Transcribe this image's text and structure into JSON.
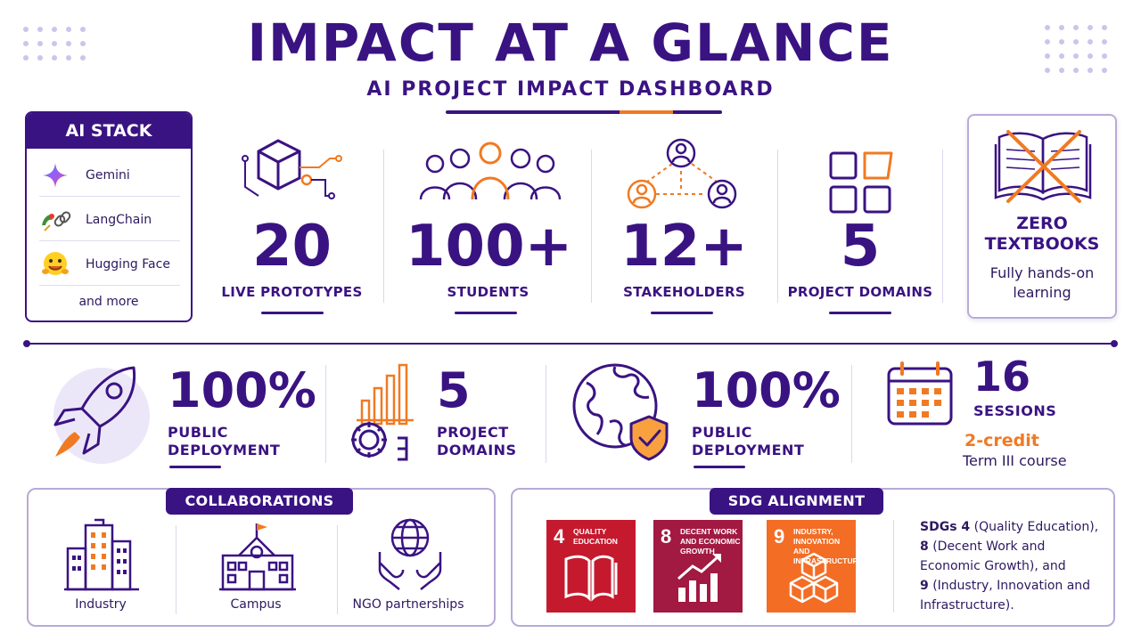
{
  "header": {
    "title": "IMPACT AT A GLANCE",
    "subtitle": "AI PROJECT IMPACT DASHBOARD"
  },
  "ai_stack": {
    "title": "AI STACK",
    "items": [
      {
        "label": "Gemini",
        "icon": "gemini-icon"
      },
      {
        "label": "LangChain",
        "icon": "langchain-icon"
      },
      {
        "label": "Hugging Face",
        "icon": "hugging-face-icon"
      }
    ],
    "more": "and more"
  },
  "top_stats": [
    {
      "value": "20",
      "label": "LIVE PROTOTYPES",
      "icon": "cube-circuit-icon"
    },
    {
      "value": "100+",
      "label": "STUDENTS",
      "icon": "people-group-icon"
    },
    {
      "value": "12+",
      "label": "STAKEHOLDERS",
      "icon": "stakeholder-network-icon"
    },
    {
      "value": "5",
      "label": "PROJECT DOMAINS",
      "icon": "grid-squares-icon"
    }
  ],
  "zero_textbooks": {
    "title_line1": "ZERO",
    "title_line2": "TEXTBOOKS",
    "desc_line1": "Fully hands-on",
    "desc_line2": "learning"
  },
  "mid_stats": [
    {
      "value": "100%",
      "label_line1": "PUBLIC",
      "label_line2": "DEPLOYMENT",
      "icon": "rocket-icon"
    },
    {
      "value": "5",
      "label_line1": "PROJECT",
      "label_line2": "DOMAINS",
      "icon": "gear-bars-icon"
    },
    {
      "value": "100%",
      "label_line1": "PUBLIC",
      "label_line2": "DEPLOYMENT",
      "icon": "globe-shield-icon"
    }
  ],
  "sessions": {
    "value": "16",
    "label": "SESSIONS",
    "credit": "2-credit",
    "course": "Term III course",
    "icon": "calendar-icon"
  },
  "collaborations": {
    "title": "COLLABORATIONS",
    "items": [
      {
        "label": "Industry",
        "icon": "industry-buildings-icon"
      },
      {
        "label": "Campus",
        "icon": "campus-building-icon"
      },
      {
        "label": "NGO partnerships",
        "icon": "hands-globe-icon"
      }
    ]
  },
  "sdg": {
    "title": "SDG ALIGNMENT",
    "cards": [
      {
        "number": "4",
        "title": "QUALITY EDUCATION",
        "color": "#c5192d"
      },
      {
        "number": "8",
        "title": "DECENT WORK AND ECONOMIC GROWTH",
        "color": "#a21942"
      },
      {
        "number": "9",
        "title": "INDUSTRY, INNOVATION AND INFRASTRUCTURE",
        "color": "#f36d25"
      }
    ],
    "text_lines": [
      {
        "bold": "SDGs 4",
        "rest": " (Quality Education),"
      },
      {
        "bold": "8",
        "rest": " (Decent Work and"
      },
      {
        "bold": "",
        "rest": "Economic Growth), and"
      },
      {
        "bold": "9",
        "rest": " (Industry, Innovation and"
      },
      {
        "bold": "",
        "rest": "Infrastructure)."
      }
    ]
  },
  "colors": {
    "primary": "#3a1382",
    "accent": "#f07a23"
  }
}
